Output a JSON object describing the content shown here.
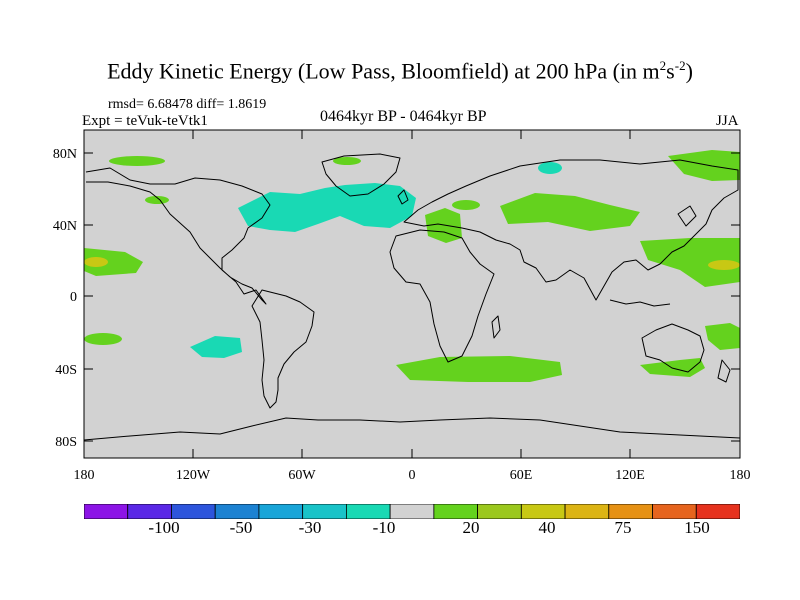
{
  "title": {
    "main": "Eddy Kinetic Energy (Low Pass, Bloomfield) at 200 hPa (in m",
    "sup1": "2",
    "mid": "s",
    "sup2": "-2",
    "end": ")"
  },
  "stats": "rmsd= 6.68478 diff= 1.8619",
  "expt": "Expt = teVuk-teVtk1",
  "period": "0464kyr BP - 0464kyr BP",
  "season": "JJA",
  "lat_ticks": [
    "80N",
    "40N",
    "0",
    "40S",
    "80S"
  ],
  "lon_ticks": [
    "180",
    "120W",
    "60W",
    "0",
    "60E",
    "120E",
    "180"
  ],
  "colorbar": {
    "colors": [
      "#8c14e6",
      "#5a28e6",
      "#2d55dc",
      "#1c82d2",
      "#19a5d8",
      "#19c3c8",
      "#19d9b4",
      "#d2d2d2",
      "#64d21e",
      "#9bc81e",
      "#c8c814",
      "#dcb414",
      "#e69114",
      "#e6641e",
      "#e6321e"
    ],
    "labels": [
      "-100",
      "-50",
      "-30",
      "-10",
      "20",
      "40",
      "75",
      "150"
    ],
    "land_color": "#d2d2d2",
    "negative_color": "#19d9b4",
    "positive_color": "#64d21e",
    "strong_positive_color": "#c8c814"
  }
}
